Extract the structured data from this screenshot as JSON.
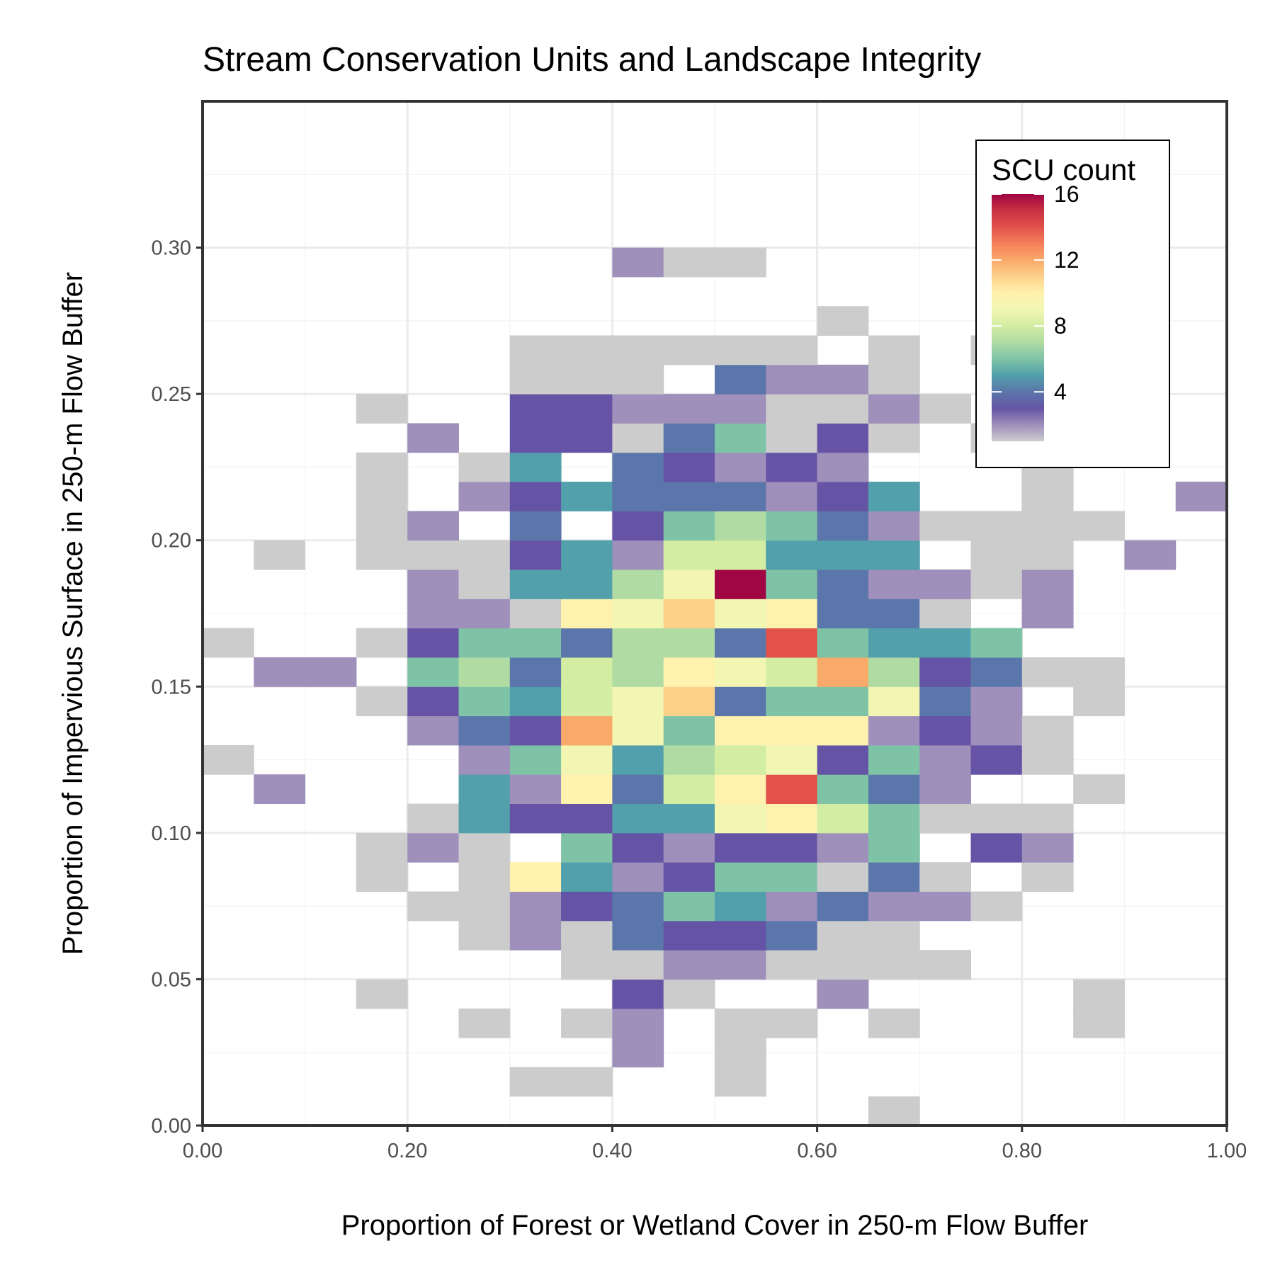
{
  "chart_data": {
    "type": "heatmap",
    "title": "Stream Conservation Units and Landscape Integrity",
    "xlabel": "Proportion of Forest or Wetland Cover in 250-m Flow Buffer",
    "ylabel": "Proportion of Impervious Surface in 250-m Flow Buffer",
    "xlim": [
      0,
      1
    ],
    "ylim": [
      0,
      0.35
    ],
    "x_ticks": [
      0,
      0.2,
      0.4,
      0.6,
      0.8,
      1.0
    ],
    "x_tick_labels": [
      "0.00",
      "0.20",
      "0.40",
      "0.60",
      "0.80",
      "1.00"
    ],
    "y_ticks": [
      0,
      0.05,
      0.1,
      0.15,
      0.2,
      0.25,
      0.3
    ],
    "y_tick_labels": [
      "0.00",
      "0.05",
      "0.10",
      "0.15",
      "0.20",
      "0.25",
      "0.30"
    ],
    "grid": true,
    "bin_width_x": 0.05,
    "bin_height_y": 0.01,
    "x_bin_starts": [
      0.0,
      0.05,
      0.1,
      0.15,
      0.2,
      0.25,
      0.3,
      0.35,
      0.4,
      0.45,
      0.5,
      0.55,
      0.6,
      0.65,
      0.7,
      0.75,
      0.8,
      0.85,
      0.9,
      0.95
    ],
    "y_bin_starts": [
      0.0,
      0.01,
      0.02,
      0.03,
      0.04,
      0.05,
      0.06,
      0.07,
      0.08,
      0.09,
      0.1,
      0.11,
      0.12,
      0.13,
      0.14,
      0.15,
      0.16,
      0.17,
      0.18,
      0.19,
      0.2,
      0.21,
      0.22,
      0.23,
      0.24,
      0.25,
      0.26,
      0.27,
      0.28,
      0.29
    ],
    "counts_by_y_bin": [
      [
        0,
        0,
        0,
        0,
        0,
        0,
        0,
        0,
        0,
        0,
        0,
        0,
        0,
        1,
        0,
        0,
        0,
        0,
        0,
        0
      ],
      [
        0,
        0,
        0,
        0,
        0,
        0,
        1,
        1,
        0,
        0,
        1,
        0,
        0,
        0,
        0,
        0,
        0,
        0,
        0,
        0
      ],
      [
        0,
        0,
        0,
        0,
        0,
        0,
        0,
        0,
        2,
        0,
        1,
        0,
        0,
        0,
        0,
        0,
        0,
        0,
        0,
        0
      ],
      [
        0,
        0,
        0,
        0,
        0,
        1,
        0,
        1,
        2,
        0,
        1,
        1,
        0,
        1,
        0,
        0,
        0,
        1,
        0,
        0
      ],
      [
        0,
        0,
        0,
        1,
        0,
        0,
        0,
        0,
        3,
        1,
        0,
        0,
        2,
        0,
        0,
        0,
        0,
        1,
        0,
        0
      ],
      [
        0,
        0,
        0,
        0,
        0,
        0,
        0,
        1,
        1,
        2,
        2,
        1,
        1,
        1,
        1,
        0,
        0,
        0,
        0,
        0
      ],
      [
        0,
        0,
        0,
        0,
        0,
        1,
        2,
        1,
        4,
        3,
        3,
        4,
        1,
        1,
        0,
        0,
        0,
        0,
        0,
        0
      ],
      [
        0,
        0,
        0,
        0,
        1,
        1,
        2,
        3,
        4,
        6,
        5,
        2,
        4,
        2,
        2,
        1,
        0,
        0,
        0,
        0
      ],
      [
        0,
        0,
        0,
        1,
        0,
        1,
        10,
        5,
        2,
        3,
        6,
        6,
        1,
        4,
        1,
        0,
        1,
        0,
        0,
        0
      ],
      [
        0,
        0,
        0,
        1,
        2,
        1,
        0,
        6,
        3,
        2,
        3,
        3,
        2,
        6,
        0,
        3,
        2,
        0,
        0,
        0
      ],
      [
        0,
        0,
        0,
        0,
        1,
        5,
        3,
        3,
        5,
        5,
        9,
        10,
        8,
        6,
        1,
        1,
        1,
        0,
        0,
        0
      ],
      [
        0,
        2,
        0,
        0,
        0,
        5,
        2,
        10,
        4,
        8,
        10,
        14,
        6,
        4,
        2,
        0,
        0,
        1,
        0,
        0
      ],
      [
        1,
        0,
        0,
        0,
        0,
        2,
        6,
        9,
        5,
        7,
        8,
        9,
        3,
        6,
        2,
        3,
        1,
        0,
        0,
        0
      ],
      [
        0,
        0,
        0,
        0,
        2,
        4,
        3,
        12,
        9,
        6,
        10,
        10,
        10,
        2,
        3,
        2,
        1,
        0,
        0,
        0
      ],
      [
        0,
        0,
        0,
        1,
        3,
        6,
        5,
        8,
        9,
        11,
        4,
        6,
        6,
        9,
        4,
        2,
        0,
        1,
        0,
        0
      ],
      [
        0,
        2,
        2,
        0,
        6,
        7,
        4,
        8,
        7,
        10,
        9,
        8,
        12,
        7,
        3,
        4,
        1,
        1,
        0,
        0
      ],
      [
        1,
        0,
        0,
        1,
        3,
        6,
        6,
        4,
        7,
        7,
        4,
        14,
        6,
        5,
        5,
        6,
        0,
        0,
        0,
        0
      ],
      [
        0,
        0,
        0,
        0,
        2,
        2,
        1,
        10,
        9,
        11,
        9,
        10,
        4,
        4,
        1,
        0,
        2,
        0,
        0,
        0
      ],
      [
        0,
        0,
        0,
        0,
        2,
        1,
        5,
        5,
        7,
        9,
        16,
        6,
        4,
        2,
        2,
        1,
        2,
        0,
        0,
        0
      ],
      [
        0,
        1,
        0,
        1,
        1,
        1,
        3,
        5,
        2,
        8,
        8,
        5,
        5,
        5,
        0,
        1,
        1,
        0,
        2,
        0
      ],
      [
        0,
        0,
        0,
        1,
        2,
        0,
        4,
        0,
        3,
        6,
        7,
        6,
        4,
        2,
        1,
        1,
        1,
        1,
        0,
        0
      ],
      [
        0,
        0,
        0,
        1,
        0,
        2,
        3,
        5,
        4,
        4,
        4,
        2,
        3,
        5,
        0,
        0,
        1,
        0,
        0,
        2
      ],
      [
        0,
        0,
        0,
        1,
        0,
        1,
        5,
        0,
        4,
        3,
        2,
        3,
        2,
        0,
        0,
        0,
        1,
        0,
        0,
        0
      ],
      [
        0,
        0,
        0,
        0,
        2,
        0,
        3,
        3,
        1,
        4,
        6,
        1,
        3,
        1,
        0,
        1,
        1,
        0,
        0,
        0
      ],
      [
        0,
        0,
        0,
        1,
        0,
        0,
        3,
        3,
        2,
        2,
        2,
        1,
        1,
        2,
        1,
        0,
        0,
        0,
        0,
        0
      ],
      [
        0,
        0,
        0,
        0,
        0,
        0,
        1,
        1,
        1,
        0,
        4,
        2,
        2,
        1,
        0,
        0,
        0,
        0,
        0,
        0
      ],
      [
        0,
        0,
        0,
        0,
        0,
        0,
        1,
        1,
        1,
        1,
        1,
        1,
        0,
        1,
        0,
        1,
        0,
        0,
        0,
        0
      ],
      [
        0,
        0,
        0,
        0,
        0,
        0,
        0,
        0,
        0,
        0,
        0,
        0,
        1,
        0,
        0,
        0,
        0,
        0,
        0,
        0
      ],
      [
        0,
        0,
        0,
        0,
        0,
        0,
        0,
        0,
        0,
        0,
        0,
        0,
        0,
        0,
        0,
        0,
        0,
        0,
        0,
        0
      ],
      [
        0,
        0,
        0,
        0,
        0,
        0,
        0,
        0,
        2,
        1,
        1,
        0,
        0,
        0,
        0,
        0,
        0,
        0,
        0,
        0
      ]
    ],
    "legend": {
      "title": "SCU count",
      "placement": "top-right",
      "tick_values": [
        4,
        8,
        12,
        16
      ],
      "tick_labels": [
        "4",
        "8",
        "12",
        "16"
      ],
      "min": 1,
      "max": 16
    },
    "colors": {
      "scale": [
        "#cccccc",
        "#9e8fbb",
        "#6554a5",
        "#5b76aa",
        "#51a0ab",
        "#7fc3a7",
        "#b0dba2",
        "#d3eda3",
        "#f2f6b2",
        "#fff2ae",
        "#fdd18a",
        "#f9a96a",
        "#f57f59",
        "#e2514a",
        "#c73142",
        "#a00643"
      ]
    }
  }
}
